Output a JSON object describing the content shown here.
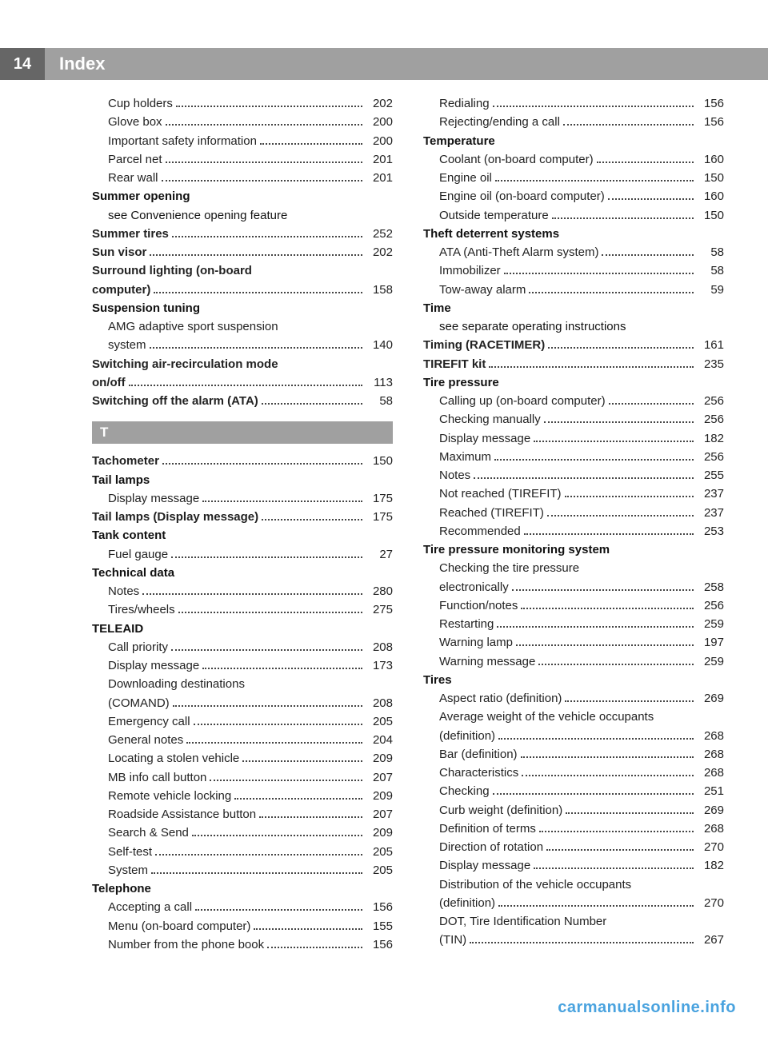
{
  "page_number": "14",
  "header_title": "Index",
  "letter_header": "T",
  "footer_text": "carmanualsonline.info",
  "colors": {
    "header_bg": "#a0a0a0",
    "pagebox_bg": "#666666",
    "text": "#222222",
    "footer": "#4aa3df"
  },
  "left_column": [
    {
      "type": "sub",
      "label": "Cup holders",
      "page": "202"
    },
    {
      "type": "sub",
      "label": "Glove box",
      "page": "200"
    },
    {
      "type": "sub",
      "label": "Important safety information",
      "page": "200"
    },
    {
      "type": "sub",
      "label": "Parcel net",
      "page": "201"
    },
    {
      "type": "sub",
      "label": "Rear wall",
      "page": "201"
    },
    {
      "type": "heading",
      "label": "Summer opening"
    },
    {
      "type": "subtext",
      "label": "see Convenience opening feature"
    },
    {
      "type": "bold",
      "label": "Summer tires",
      "page": "252"
    },
    {
      "type": "bold",
      "label": "Sun visor",
      "page": "202"
    },
    {
      "type": "bold_multiline",
      "label": "Surround lighting (on-board computer)",
      "page": "158"
    },
    {
      "type": "heading",
      "label": "Suspension tuning"
    },
    {
      "type": "sub_multiline",
      "label": "AMG adaptive sport suspension system",
      "page": "140"
    },
    {
      "type": "bold_multiline",
      "label": "Switching air-recirculation mode on/off",
      "page": "113"
    },
    {
      "type": "bold",
      "label": "Switching off the alarm (ATA)",
      "page": "58"
    },
    {
      "type": "letter"
    },
    {
      "type": "bold",
      "label": "Tachometer",
      "page": "150"
    },
    {
      "type": "heading",
      "label": "Tail lamps"
    },
    {
      "type": "sub",
      "label": "Display message",
      "page": "175"
    },
    {
      "type": "bold",
      "label": "Tail lamps (Display message)",
      "page": "175"
    },
    {
      "type": "heading",
      "label": "Tank content"
    },
    {
      "type": "sub",
      "label": "Fuel gauge",
      "page": "27"
    },
    {
      "type": "heading",
      "label": "Technical data"
    },
    {
      "type": "sub",
      "label": "Notes",
      "page": "280"
    },
    {
      "type": "sub",
      "label": "Tires/wheels",
      "page": "275"
    },
    {
      "type": "heading",
      "label": "TELEAID"
    },
    {
      "type": "sub",
      "label": "Call priority",
      "page": "208"
    },
    {
      "type": "sub",
      "label": "Display message",
      "page": "173"
    },
    {
      "type": "sub_multiline",
      "label": "Downloading destinations (COMAND)",
      "page": "208"
    },
    {
      "type": "sub",
      "label": "Emergency call",
      "page": "205"
    },
    {
      "type": "sub",
      "label": "General notes",
      "page": "204"
    },
    {
      "type": "sub",
      "label": "Locating a stolen vehicle",
      "page": "209"
    },
    {
      "type": "sub",
      "label": "MB info call button",
      "page": "207"
    },
    {
      "type": "sub",
      "label": "Remote vehicle locking",
      "page": "209"
    },
    {
      "type": "sub",
      "label": "Roadside Assistance button",
      "page": "207"
    },
    {
      "type": "sub",
      "label": "Search & Send",
      "page": "209"
    },
    {
      "type": "sub",
      "label": "Self-test",
      "page": "205"
    },
    {
      "type": "sub",
      "label": "System",
      "page": "205"
    },
    {
      "type": "heading",
      "label": "Telephone"
    },
    {
      "type": "sub",
      "label": "Accepting a call",
      "page": "156"
    },
    {
      "type": "sub",
      "label": "Menu (on-board computer)",
      "page": "155"
    },
    {
      "type": "sub",
      "label": "Number from the phone book",
      "page": "156"
    }
  ],
  "right_column": [
    {
      "type": "sub",
      "label": "Redialing",
      "page": "156"
    },
    {
      "type": "sub",
      "label": "Rejecting/ending a call",
      "page": "156"
    },
    {
      "type": "heading",
      "label": "Temperature"
    },
    {
      "type": "sub",
      "label": "Coolant (on-board computer)",
      "page": "160"
    },
    {
      "type": "sub",
      "label": "Engine oil",
      "page": "150"
    },
    {
      "type": "sub",
      "label": "Engine oil (on-board computer)",
      "page": "160"
    },
    {
      "type": "sub",
      "label": "Outside temperature",
      "page": "150"
    },
    {
      "type": "heading",
      "label": "Theft deterrent systems"
    },
    {
      "type": "sub",
      "label": "ATA (Anti-Theft Alarm system)",
      "page": "58"
    },
    {
      "type": "sub",
      "label": "Immobilizer",
      "page": "58"
    },
    {
      "type": "sub",
      "label": "Tow-away alarm",
      "page": "59"
    },
    {
      "type": "heading",
      "label": "Time"
    },
    {
      "type": "subtext",
      "label": "see separate operating instructions"
    },
    {
      "type": "bold",
      "label": "Timing (RACETIMER)",
      "page": "161"
    },
    {
      "type": "bold",
      "label": "TIREFIT kit",
      "page": "235"
    },
    {
      "type": "heading",
      "label": "Tire pressure"
    },
    {
      "type": "sub",
      "label": "Calling up (on-board computer)",
      "page": "256"
    },
    {
      "type": "sub",
      "label": "Checking manually",
      "page": "256"
    },
    {
      "type": "sub",
      "label": "Display message",
      "page": "182"
    },
    {
      "type": "sub",
      "label": "Maximum",
      "page": "256"
    },
    {
      "type": "sub",
      "label": "Notes",
      "page": "255"
    },
    {
      "type": "sub",
      "label": "Not reached (TIREFIT)",
      "page": "237"
    },
    {
      "type": "sub",
      "label": "Reached (TIREFIT)",
      "page": "237"
    },
    {
      "type": "sub",
      "label": "Recommended",
      "page": "253"
    },
    {
      "type": "heading",
      "label": "Tire pressure monitoring system"
    },
    {
      "type": "sub_multiline",
      "label": "Checking the tire pressure electronically",
      "page": "258"
    },
    {
      "type": "sub",
      "label": "Function/notes",
      "page": "256"
    },
    {
      "type": "sub",
      "label": "Restarting",
      "page": "259"
    },
    {
      "type": "sub",
      "label": "Warning lamp",
      "page": "197"
    },
    {
      "type": "sub",
      "label": "Warning message",
      "page": "259"
    },
    {
      "type": "heading",
      "label": "Tires"
    },
    {
      "type": "sub",
      "label": "Aspect ratio (definition)",
      "page": "269"
    },
    {
      "type": "sub_multiline",
      "label": "Average weight of the vehicle occupants (definition)",
      "page": "268"
    },
    {
      "type": "sub",
      "label": "Bar (definition)",
      "page": "268"
    },
    {
      "type": "sub",
      "label": "Characteristics",
      "page": "268"
    },
    {
      "type": "sub",
      "label": "Checking",
      "page": "251"
    },
    {
      "type": "sub",
      "label": "Curb weight (definition)",
      "page": "269"
    },
    {
      "type": "sub",
      "label": "Definition of terms",
      "page": "268"
    },
    {
      "type": "sub",
      "label": "Direction of rotation",
      "page": "270"
    },
    {
      "type": "sub",
      "label": "Display message",
      "page": "182"
    },
    {
      "type": "sub_multiline",
      "label": "Distribution of the vehicle occupants (definition)",
      "page": "270"
    },
    {
      "type": "sub_multiline",
      "label": "DOT, Tire Identification Number (TIN)",
      "page": "267"
    }
  ]
}
